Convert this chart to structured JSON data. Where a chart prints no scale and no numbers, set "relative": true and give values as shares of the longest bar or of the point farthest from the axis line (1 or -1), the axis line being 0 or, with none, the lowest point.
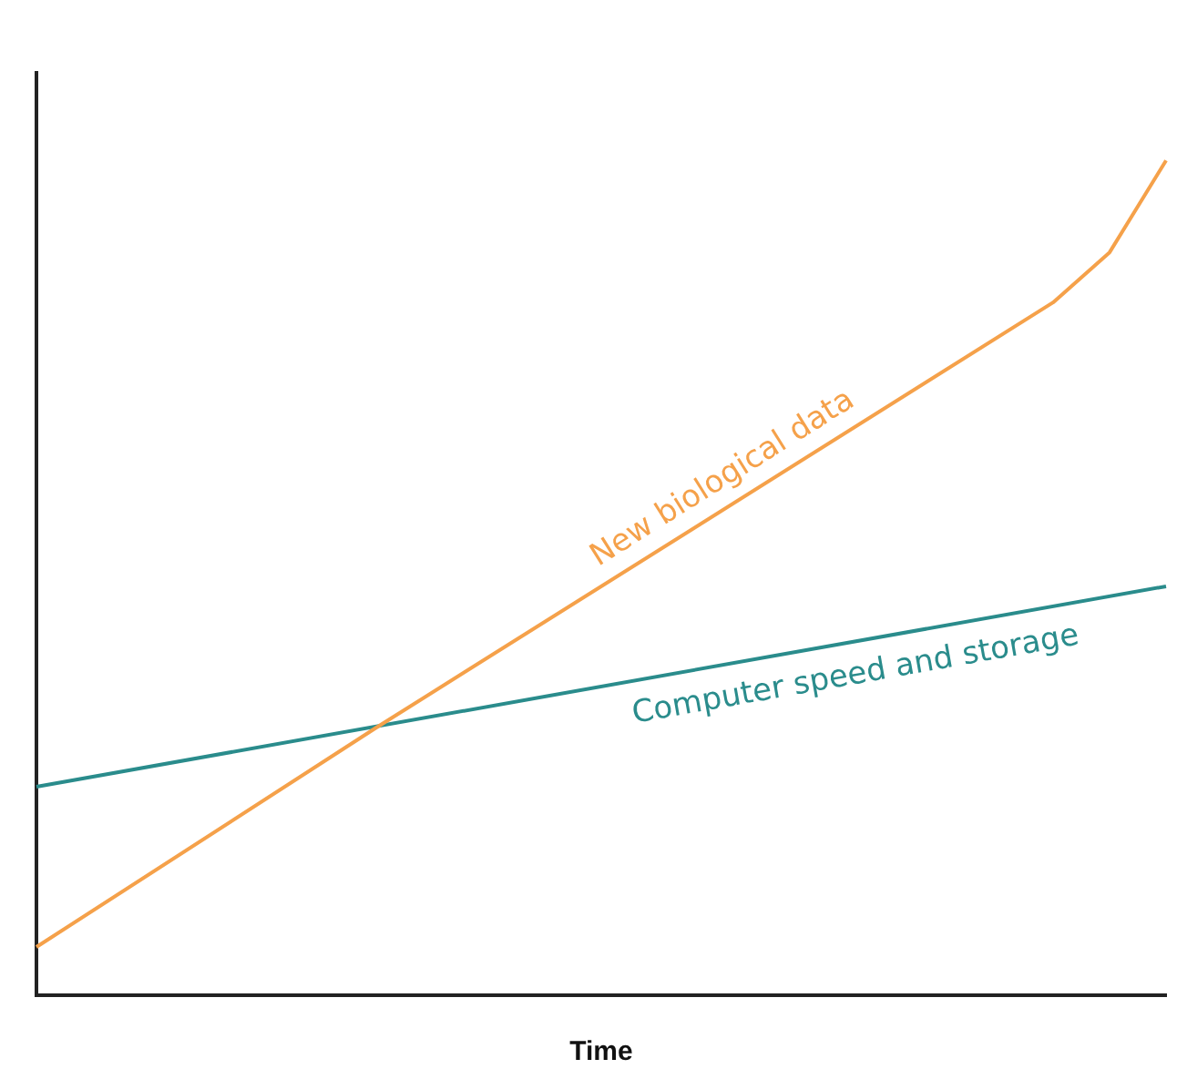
{
  "chart_data": {
    "type": "line",
    "xlabel": "Time",
    "relative": true,
    "legend": false,
    "grid": false,
    "marker": "none",
    "line_style": "solid",
    "categories": [
      null,
      null,
      null,
      null,
      null,
      null,
      null,
      null,
      null,
      null,
      null,
      null,
      null,
      null,
      null,
      null,
      null,
      null,
      null,
      null,
      null
    ],
    "series": [
      {
        "name": "New biological data",
        "color": "#f5a14a",
        "values": [
          0.058,
          null,
          null,
          null,
          null,
          null,
          0.32,
          null,
          null,
          null,
          null,
          null,
          null,
          null,
          null,
          null,
          null,
          null,
          0.83,
          0.89,
          1
        ]
      },
      {
        "name": "Computer speed and storage",
        "color": "#2a8c8c",
        "values": [
          0.25,
          null,
          null,
          null,
          null,
          null,
          null,
          null,
          null,
          null,
          null,
          null,
          null,
          null,
          null,
          null,
          null,
          null,
          null,
          null,
          0.49
        ]
      }
    ]
  }
}
